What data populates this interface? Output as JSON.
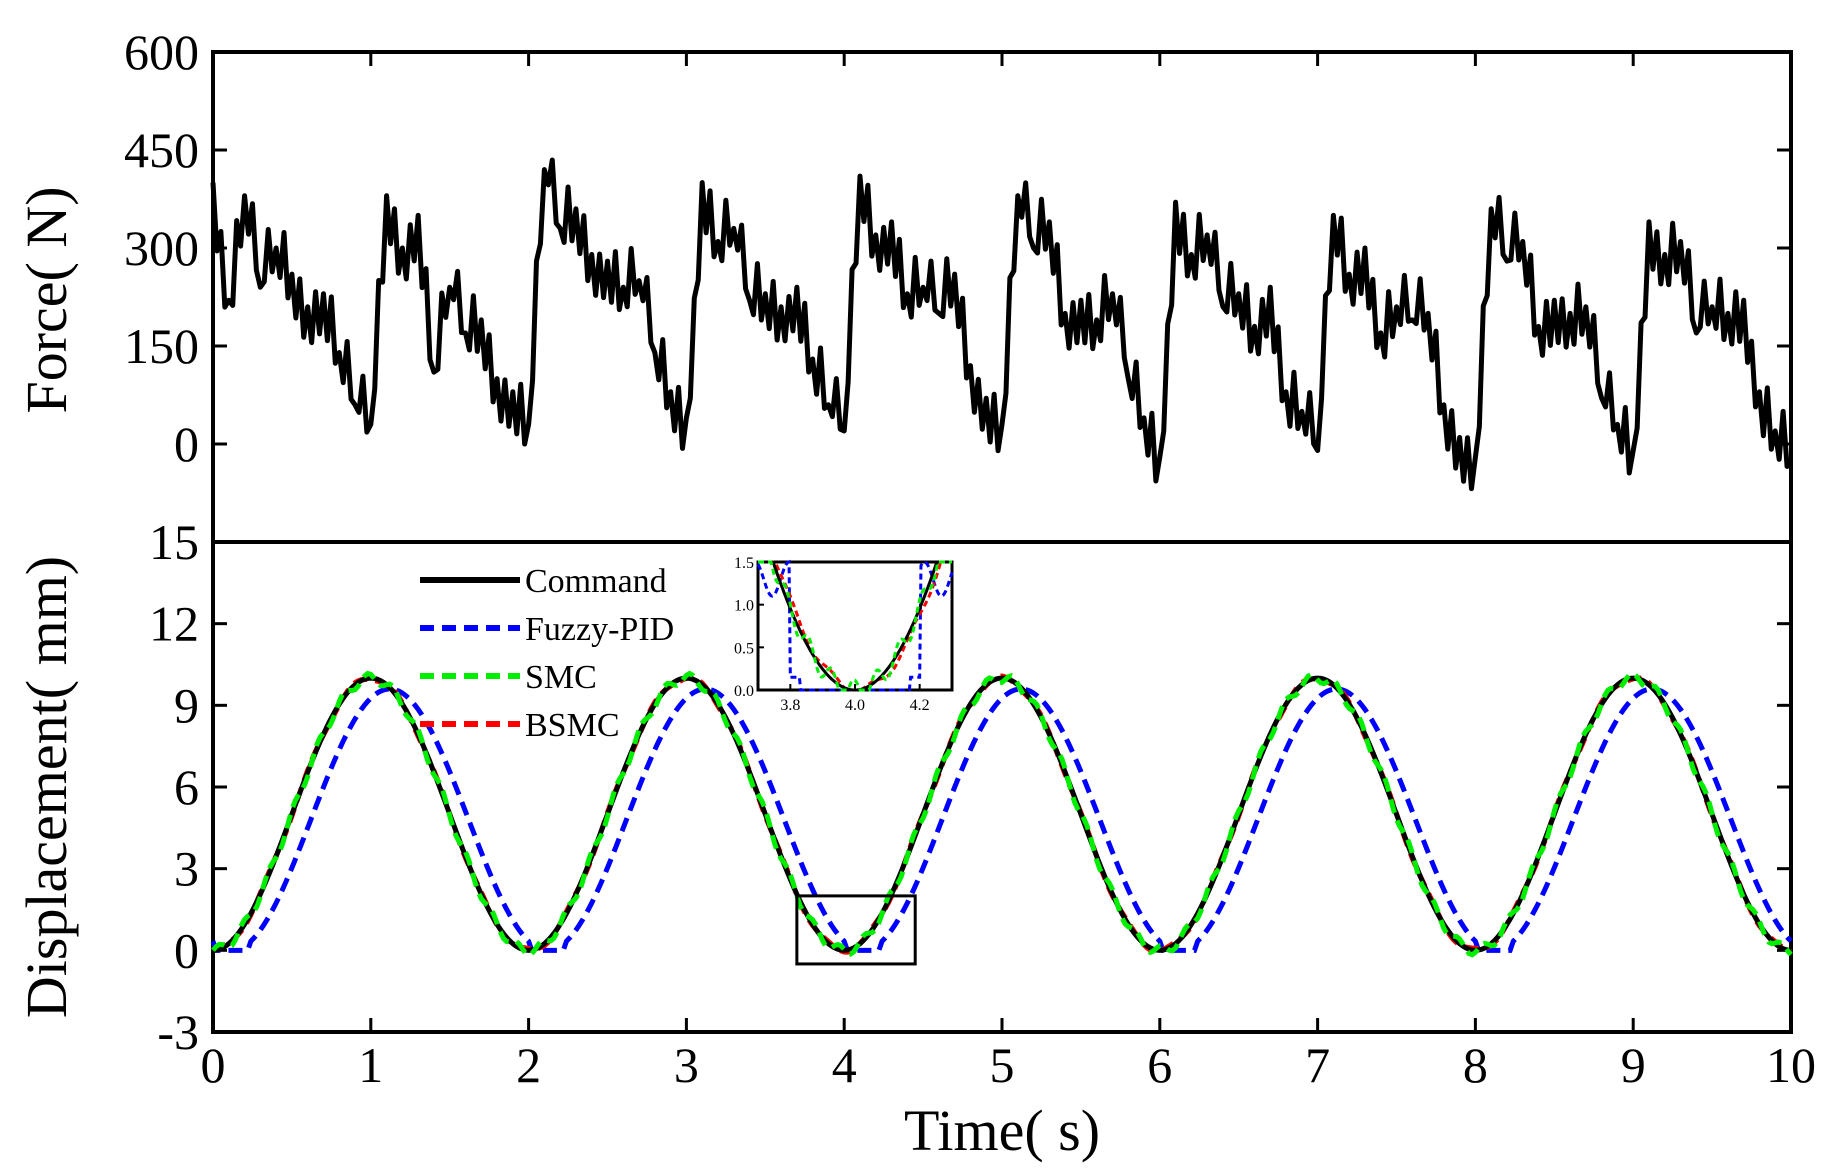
{
  "chart_data": [
    {
      "type": "line",
      "panel": "top",
      "ylabel": "Force(   N)",
      "xlim": [
        0,
        10
      ],
      "ylim": [
        -150,
        600
      ],
      "yticks": [
        0,
        150,
        300,
        450,
        600
      ],
      "ytick_labels": [
        "0",
        "150",
        "300",
        "450",
        "600"
      ],
      "series": [
        {
          "name": "Force",
          "color": "#000000",
          "x": [
            0,
            0.1,
            0.2,
            0.3,
            0.4,
            0.5,
            0.6,
            0.7,
            0.8,
            0.9,
            1.0,
            1.1,
            1.2,
            1.3,
            1.4,
            1.5,
            1.6,
            1.7,
            1.8,
            1.9,
            2.0,
            2.1,
            2.2,
            2.3,
            2.4,
            2.5,
            2.6,
            2.7,
            2.8,
            2.9,
            3.0,
            3.1,
            3.2,
            3.3,
            3.4,
            3.5,
            3.6,
            3.7,
            3.8,
            3.9,
            4.0,
            4.1,
            4.2,
            4.3,
            4.4,
            4.5,
            4.6,
            4.7,
            4.8,
            4.9,
            5.0,
            5.1,
            5.2,
            5.3,
            5.4,
            5.5,
            5.6,
            5.7,
            5.8,
            5.9,
            6.0,
            6.1,
            6.2,
            6.3,
            6.4,
            6.5,
            6.6,
            6.7,
            6.8,
            6.9,
            7.0,
            7.1,
            7.2,
            7.3,
            7.4,
            7.5,
            7.6,
            7.7,
            7.8,
            7.9,
            8.0,
            8.1,
            8.2,
            8.3,
            8.4,
            8.5,
            8.6,
            8.7,
            8.8,
            8.9,
            9.0,
            9.1,
            9.2,
            9.3,
            9.4,
            9.5,
            9.6,
            9.7,
            9.8,
            9.9,
            10.0
          ],
          "values": [
            400,
            220,
            380,
            240,
            300,
            260,
            210,
            230,
            140,
            60,
            30,
            380,
            300,
            350,
            110,
            240,
            170,
            190,
            100,
            80,
            30,
            420,
            330,
            360,
            290,
            280,
            240,
            250,
            140,
            80,
            40,
            400,
            310,
            330,
            220,
            230,
            210,
            240,
            130,
            60,
            20,
            410,
            320,
            340,
            230,
            240,
            200,
            260,
            120,
            70,
            30,
            380,
            300,
            340,
            200,
            220,
            190,
            230,
            100,
            40,
            -20,
            370,
            290,
            320,
            210,
            230,
            180,
            240,
            80,
            50,
            -10,
            350,
            260,
            300,
            170,
            210,
            190,
            200,
            60,
            10,
            -20,
            360,
            280,
            310,
            180,
            220,
            200,
            210,
            70,
            30,
            -10,
            340,
            290,
            310,
            170,
            210,
            200,
            220,
            80,
            20,
            -30
          ]
        }
      ]
    },
    {
      "type": "line",
      "panel": "bottom",
      "xlabel": "Time(    s)",
      "ylabel": "Displacement(    mm)",
      "xlim": [
        0,
        10
      ],
      "ylim": [
        -3,
        15
      ],
      "xticks": [
        0,
        1,
        2,
        3,
        4,
        5,
        6,
        7,
        8,
        9,
        10
      ],
      "xtick_labels": [
        "0",
        "1",
        "2",
        "3",
        "4",
        "5",
        "6",
        "7",
        "8",
        "9",
        "10"
      ],
      "yticks": [
        -3,
        0,
        3,
        6,
        9,
        12,
        15
      ],
      "ytick_labels": [
        "-3",
        "0",
        "3",
        "6",
        "9",
        "12",
        "15"
      ],
      "legend": [
        "Command",
        "Fuzzy-PID",
        "SMC",
        "BSMC"
      ],
      "legend_position": "top-left",
      "series": [
        {
          "name": "Command",
          "color": "#000000",
          "dash": "solid",
          "model": "10*(1-cos(pi*t))/2"
        },
        {
          "name": "Fuzzy-PID",
          "color": "#0000ff",
          "dash": "dashed",
          "model": "delayed by ~0.1 s, peak ~9.5, with plateaus at 0"
        },
        {
          "name": "SMC",
          "color": "#00ee00",
          "dash": "dashed",
          "model": "tracks command with small chatter"
        },
        {
          "name": "BSMC",
          "color": "#ff0000",
          "dash": "dashed",
          "model": "tracks command closely"
        }
      ],
      "highlight_box": {
        "xrange": [
          3.7,
          4.45
        ],
        "yrange": [
          -0.5,
          2.0
        ]
      }
    },
    {
      "type": "line",
      "panel": "inset",
      "xlim": [
        3.7,
        4.3
      ],
      "ylim": [
        0.0,
        1.5
      ],
      "xticks": [
        3.8,
        4.0,
        4.2
      ],
      "xtick_labels": [
        "3.8",
        "4.0",
        "4.2"
      ],
      "yticks": [
        0.0,
        0.5,
        1.0,
        1.5
      ],
      "ytick_labels": [
        "0.0",
        "0.5",
        "1.0",
        "1.5"
      ]
    }
  ]
}
